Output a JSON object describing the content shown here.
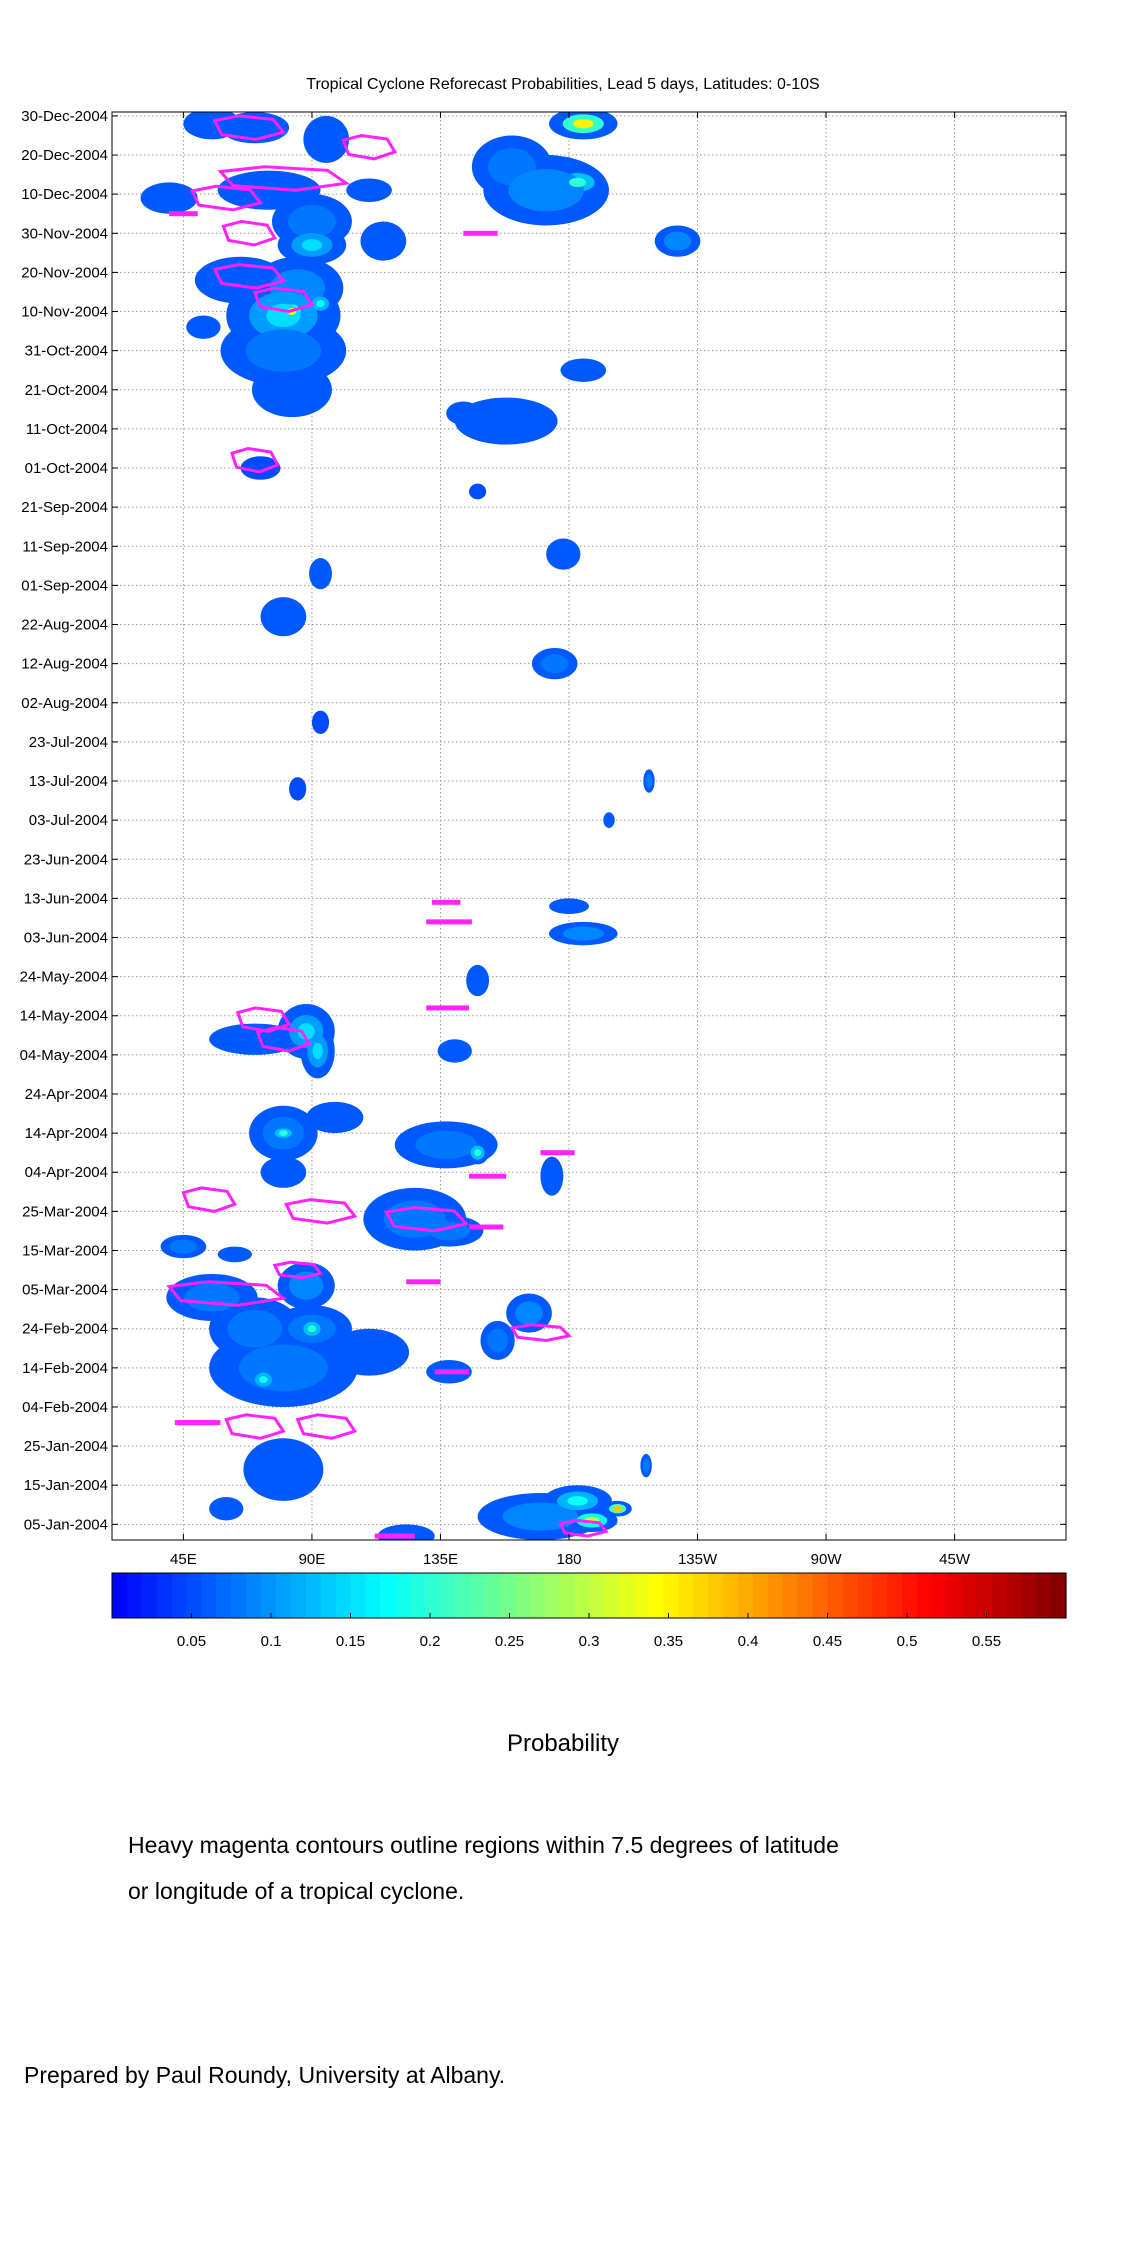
{
  "chart_data": {
    "type": "heatmap",
    "title": "Tropical Cyclone Reforecast Probabilities, Lead 5 days, Latitudes: 0-10S",
    "xlabel": "",
    "ylabel": "",
    "x_tick_labels": [
      "45E",
      "90E",
      "135E",
      "180",
      "135W",
      "90W",
      "45W"
    ],
    "x_tick_lon": [
      45,
      90,
      135,
      180,
      225,
      270,
      315
    ],
    "xlim_lon": [
      20,
      354
    ],
    "y_tick_labels": [
      "30-Dec-2004",
      "20-Dec-2004",
      "10-Dec-2004",
      "30-Nov-2004",
      "20-Nov-2004",
      "10-Nov-2004",
      "31-Oct-2004",
      "21-Oct-2004",
      "11-Oct-2004",
      "01-Oct-2004",
      "21-Sep-2004",
      "11-Sep-2004",
      "01-Sep-2004",
      "22-Aug-2004",
      "12-Aug-2004",
      "02-Aug-2004",
      "23-Jul-2004",
      "13-Jul-2004",
      "03-Jul-2004",
      "23-Jun-2004",
      "13-Jun-2004",
      "03-Jun-2004",
      "24-May-2004",
      "14-May-2004",
      "04-May-2004",
      "24-Apr-2004",
      "14-Apr-2004",
      "04-Apr-2004",
      "25-Mar-2004",
      "15-Mar-2004",
      "05-Mar-2004",
      "24-Feb-2004",
      "14-Feb-2004",
      "04-Feb-2004",
      "25-Jan-2004",
      "15-Jan-2004",
      "05-Jan-2004"
    ],
    "ylim": [
      "01-Jan-2004",
      "31-Dec-2004"
    ],
    "colorbar": {
      "label": "Probability",
      "range": [
        0.0,
        0.6
      ],
      "tick_labels": [
        "0.05",
        "0.1",
        "0.15",
        "0.2",
        "0.25",
        "0.3",
        "0.35",
        "0.4",
        "0.45",
        "0.5",
        "0.55"
      ],
      "tick_values": [
        0.05,
        0.1,
        0.15,
        0.2,
        0.25,
        0.3,
        0.35,
        0.4,
        0.45,
        0.5,
        0.55
      ],
      "colormap": "jet"
    },
    "grid": true,
    "probability_blobs": [
      {
        "lon": 55,
        "date": "2004-12-28",
        "rx": 10,
        "ry": 4,
        "p": 0.08
      },
      {
        "lon": 70,
        "date": "2004-12-27",
        "rx": 12,
        "ry": 4,
        "p": 0.08
      },
      {
        "lon": 95,
        "date": "2004-12-24",
        "rx": 8,
        "ry": 6,
        "p": 0.06
      },
      {
        "lon": 160,
        "date": "2004-12-17",
        "rx": 14,
        "ry": 8,
        "p": 0.1
      },
      {
        "lon": 185,
        "date": "2004-12-28",
        "rx": 12,
        "ry": 4,
        "p": 0.35
      },
      {
        "lon": 183,
        "date": "2004-12-13",
        "rx": 10,
        "ry": 4,
        "p": 0.2
      },
      {
        "lon": 172,
        "date": "2004-12-11",
        "rx": 22,
        "ry": 9,
        "p": 0.12
      },
      {
        "lon": 75,
        "date": "2004-12-11",
        "rx": 18,
        "ry": 5,
        "p": 0.07
      },
      {
        "lon": 40,
        "date": "2004-12-09",
        "rx": 10,
        "ry": 4,
        "p": 0.06
      },
      {
        "lon": 110,
        "date": "2004-12-11",
        "rx": 8,
        "ry": 3,
        "p": 0.06
      },
      {
        "lon": 90,
        "date": "2004-12-03",
        "rx": 14,
        "ry": 7,
        "p": 0.1
      },
      {
        "lon": 90,
        "date": "2004-11-27",
        "rx": 12,
        "ry": 5,
        "p": 0.15
      },
      {
        "lon": 115,
        "date": "2004-11-28",
        "rx": 8,
        "ry": 5,
        "p": 0.06
      },
      {
        "lon": 218,
        "date": "2004-11-28",
        "rx": 8,
        "ry": 4,
        "p": 0.12
      },
      {
        "lon": 65,
        "date": "2004-11-18",
        "rx": 16,
        "ry": 6,
        "p": 0.08
      },
      {
        "lon": 85,
        "date": "2004-11-16",
        "rx": 16,
        "ry": 8,
        "p": 0.12
      },
      {
        "lon": 80,
        "date": "2004-11-09",
        "rx": 20,
        "ry": 10,
        "p": 0.15
      },
      {
        "lon": 83,
        "date": "2004-11-10",
        "rx": 5,
        "ry": 3,
        "p": 0.35
      },
      {
        "lon": 93,
        "date": "2004-11-12",
        "rx": 5,
        "ry": 3,
        "p": 0.18
      },
      {
        "lon": 80,
        "date": "2004-10-31",
        "rx": 22,
        "ry": 9,
        "p": 0.1
      },
      {
        "lon": 52,
        "date": "2004-11-06",
        "rx": 6,
        "ry": 3,
        "p": 0.06
      },
      {
        "lon": 83,
        "date": "2004-10-21",
        "rx": 14,
        "ry": 7,
        "p": 0.08
      },
      {
        "lon": 185,
        "date": "2004-10-26",
        "rx": 8,
        "ry": 3,
        "p": 0.07
      },
      {
        "lon": 158,
        "date": "2004-10-13",
        "rx": 18,
        "ry": 6,
        "p": 0.08
      },
      {
        "lon": 143,
        "date": "2004-10-15",
        "rx": 6,
        "ry": 3,
        "p": 0.06
      },
      {
        "lon": 72,
        "date": "2004-10-01",
        "rx": 7,
        "ry": 3,
        "p": 0.05
      },
      {
        "lon": 148,
        "date": "2004-09-25",
        "rx": 3,
        "ry": 2,
        "p": 0.05
      },
      {
        "lon": 93,
        "date": "2004-09-04",
        "rx": 4,
        "ry": 4,
        "p": 0.07
      },
      {
        "lon": 178,
        "date": "2004-09-09",
        "rx": 6,
        "ry": 4,
        "p": 0.06
      },
      {
        "lon": 80,
        "date": "2004-08-24",
        "rx": 8,
        "ry": 5,
        "p": 0.07
      },
      {
        "lon": 175,
        "date": "2004-08-12",
        "rx": 8,
        "ry": 4,
        "p": 0.1
      },
      {
        "lon": 93,
        "date": "2004-07-28",
        "rx": 3,
        "ry": 3,
        "p": 0.05
      },
      {
        "lon": 85,
        "date": "2004-07-11",
        "rx": 3,
        "ry": 3,
        "p": 0.05
      },
      {
        "lon": 208,
        "date": "2004-07-13",
        "rx": 2,
        "ry": 3,
        "p": 0.1
      },
      {
        "lon": 194,
        "date": "2004-07-03",
        "rx": 2,
        "ry": 2,
        "p": 0.06
      },
      {
        "lon": 180,
        "date": "2004-06-11",
        "rx": 7,
        "ry": 2,
        "p": 0.07
      },
      {
        "lon": 185,
        "date": "2004-06-04",
        "rx": 12,
        "ry": 3,
        "p": 0.12
      },
      {
        "lon": 148,
        "date": "2004-05-23",
        "rx": 4,
        "ry": 4,
        "p": 0.06
      },
      {
        "lon": 88,
        "date": "2004-05-10",
        "rx": 10,
        "ry": 7,
        "p": 0.15
      },
      {
        "lon": 92,
        "date": "2004-05-05",
        "rx": 6,
        "ry": 7,
        "p": 0.15
      },
      {
        "lon": 70,
        "date": "2004-05-08",
        "rx": 16,
        "ry": 4,
        "p": 0.08
      },
      {
        "lon": 140,
        "date": "2004-05-05",
        "rx": 6,
        "ry": 3,
        "p": 0.08
      },
      {
        "lon": 80,
        "date": "2004-04-14",
        "rx": 12,
        "ry": 7,
        "p": 0.1
      },
      {
        "lon": 80,
        "date": "2004-04-14",
        "rx": 5,
        "ry": 2,
        "p": 0.2
      },
      {
        "lon": 98,
        "date": "2004-04-18",
        "rx": 10,
        "ry": 4,
        "p": 0.07
      },
      {
        "lon": 80,
        "date": "2004-04-04",
        "rx": 8,
        "ry": 4,
        "p": 0.07
      },
      {
        "lon": 137,
        "date": "2004-04-11",
        "rx": 18,
        "ry": 6,
        "p": 0.1
      },
      {
        "lon": 148,
        "date": "2004-04-09",
        "rx": 4,
        "ry": 3,
        "p": 0.2
      },
      {
        "lon": 174,
        "date": "2004-04-03",
        "rx": 4,
        "ry": 5,
        "p": 0.07
      },
      {
        "lon": 126,
        "date": "2004-03-23",
        "rx": 18,
        "ry": 8,
        "p": 0.1
      },
      {
        "lon": 138,
        "date": "2004-03-20",
        "rx": 12,
        "ry": 4,
        "p": 0.1
      },
      {
        "lon": 45,
        "date": "2004-03-16",
        "rx": 8,
        "ry": 3,
        "p": 0.1
      },
      {
        "lon": 63,
        "date": "2004-03-14",
        "rx": 6,
        "ry": 2,
        "p": 0.06
      },
      {
        "lon": 55,
        "date": "2004-03-03",
        "rx": 16,
        "ry": 6,
        "p": 0.1
      },
      {
        "lon": 88,
        "date": "2004-03-06",
        "rx": 10,
        "ry": 6,
        "p": 0.12
      },
      {
        "lon": 70,
        "date": "2004-02-24",
        "rx": 16,
        "ry": 8,
        "p": 0.1
      },
      {
        "lon": 80,
        "date": "2004-02-14",
        "rx": 26,
        "ry": 10,
        "p": 0.1
      },
      {
        "lon": 73,
        "date": "2004-02-11",
        "rx": 5,
        "ry": 3,
        "p": 0.18
      },
      {
        "lon": 110,
        "date": "2004-02-18",
        "rx": 14,
        "ry": 6,
        "p": 0.08
      },
      {
        "lon": 90,
        "date": "2004-02-24",
        "rx": 14,
        "ry": 6,
        "p": 0.1
      },
      {
        "lon": 90,
        "date": "2004-02-24",
        "rx": 5,
        "ry": 3,
        "p": 0.2
      },
      {
        "lon": 166,
        "date": "2004-02-28",
        "rx": 8,
        "ry": 5,
        "p": 0.12
      },
      {
        "lon": 155,
        "date": "2004-02-21",
        "rx": 6,
        "ry": 5,
        "p": 0.1
      },
      {
        "lon": 138,
        "date": "2004-02-13",
        "rx": 8,
        "ry": 3,
        "p": 0.06
      },
      {
        "lon": 80,
        "date": "2004-01-19",
        "rx": 14,
        "ry": 8,
        "p": 0.08
      },
      {
        "lon": 170,
        "date": "2004-01-07",
        "rx": 22,
        "ry": 6,
        "p": 0.12
      },
      {
        "lon": 183,
        "date": "2004-01-11",
        "rx": 12,
        "ry": 4,
        "p": 0.18
      },
      {
        "lon": 188,
        "date": "2004-01-06",
        "rx": 9,
        "ry": 3,
        "p": 0.3
      },
      {
        "lon": 197,
        "date": "2004-01-09",
        "rx": 5,
        "ry": 2,
        "p": 0.38
      },
      {
        "lon": 207,
        "date": "2004-01-20",
        "rx": 2,
        "ry": 3,
        "p": 0.1
      },
      {
        "lon": 123,
        "date": "2004-01-02",
        "rx": 10,
        "ry": 3,
        "p": 0.06
      },
      {
        "lon": 60,
        "date": "2004-01-09",
        "rx": 6,
        "ry": 3,
        "p": 0.06
      }
    ],
    "cyclone_contours": [
      {
        "lon": 68,
        "date": "2004-12-27",
        "rx": 12,
        "ry": 3
      },
      {
        "lon": 110,
        "date": "2004-12-22",
        "rx": 9,
        "ry": 3
      },
      {
        "lon": 80,
        "date": "2004-12-14",
        "rx": 22,
        "ry": 3
      },
      {
        "lon": 60,
        "date": "2004-12-09",
        "rx": 12,
        "ry": 3
      },
      {
        "lon": 68,
        "date": "2004-11-30",
        "rx": 9,
        "ry": 3
      },
      {
        "lon": 68,
        "date": "2004-11-19",
        "rx": 12,
        "ry": 3
      },
      {
        "lon": 80,
        "date": "2004-11-13",
        "rx": 10,
        "ry": 3
      },
      {
        "lon": 70,
        "date": "2004-10-03",
        "rx": 8,
        "ry": 3
      },
      {
        "lon": 73,
        "date": "2004-05-13",
        "rx": 9,
        "ry": 3
      },
      {
        "lon": 80,
        "date": "2004-05-08",
        "rx": 9,
        "ry": 3
      },
      {
        "lon": 54,
        "date": "2004-03-28",
        "rx": 9,
        "ry": 3
      },
      {
        "lon": 93,
        "date": "2004-03-25",
        "rx": 12,
        "ry": 3
      },
      {
        "lon": 130,
        "date": "2004-03-23",
        "rx": 14,
        "ry": 3
      },
      {
        "lon": 85,
        "date": "2004-03-10",
        "rx": 8,
        "ry": 2
      },
      {
        "lon": 60,
        "date": "2004-03-04",
        "rx": 20,
        "ry": 3
      },
      {
        "lon": 170,
        "date": "2004-02-23",
        "rx": 10,
        "ry": 2
      },
      {
        "lon": 70,
        "date": "2004-01-30",
        "rx": 10,
        "ry": 3
      },
      {
        "lon": 95,
        "date": "2004-01-30",
        "rx": 10,
        "ry": 3
      },
      {
        "lon": 185,
        "date": "2004-01-04",
        "rx": 8,
        "ry": 2
      }
    ],
    "cyclone_bars": [
      {
        "lon1": 40,
        "lon2": 50,
        "date": "2004-12-05"
      },
      {
        "lon1": 143,
        "lon2": 155,
        "date": "2004-11-30"
      },
      {
        "lon1": 42,
        "lon2": 58,
        "date": "2004-01-31"
      },
      {
        "lon1": 132,
        "lon2": 142,
        "date": "2004-06-12"
      },
      {
        "lon1": 130,
        "lon2": 146,
        "date": "2004-06-07"
      },
      {
        "lon1": 130,
        "lon2": 145,
        "date": "2004-05-16"
      },
      {
        "lon1": 145,
        "lon2": 158,
        "date": "2004-04-03"
      },
      {
        "lon1": 170,
        "lon2": 182,
        "date": "2004-04-09"
      },
      {
        "lon1": 145,
        "lon2": 157,
        "date": "2004-03-21"
      },
      {
        "lon1": 123,
        "lon2": 135,
        "date": "2004-03-07"
      },
      {
        "lon1": 133,
        "lon2": 145,
        "date": "2004-02-13"
      },
      {
        "lon1": 112,
        "lon2": 126,
        "date": "2004-01-02"
      },
      {
        "lon1": 43,
        "lon2": 55,
        "date": "2004-01-31"
      }
    ]
  },
  "texts": {
    "colorbar_label": "Probability",
    "note_line1": "Heavy magenta contours outline regions within 7.5 degrees of latitude",
    "note_line2": "or longitude of a tropical cyclone.",
    "credit": "Prepared by Paul Roundy, University at Albany."
  },
  "colors": {
    "contour": "#ff22ff",
    "axis": "#000000",
    "grid": "#000000"
  }
}
